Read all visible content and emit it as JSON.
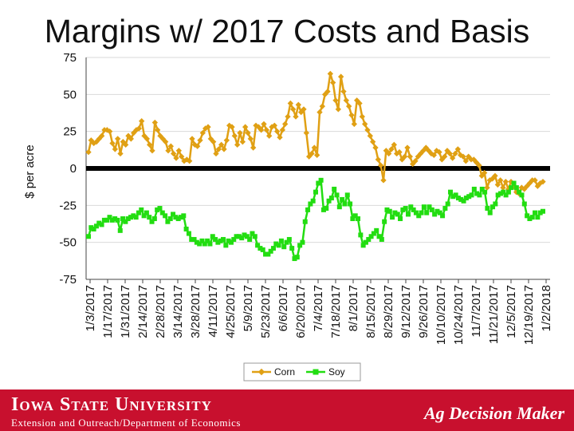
{
  "title": "Margins w/ 2017 Costs and Basis",
  "footer": {
    "university": "Iowa State University",
    "extension": "Extension and Outreach/Department of Economics",
    "brand": "Ag Decision Maker"
  },
  "colors": {
    "corn": "#e0a014",
    "soy": "#22dd11",
    "zero_line": "#000000",
    "footer_bg": "#c8102e"
  },
  "chart_data": {
    "type": "line",
    "ylabel": "$ per acre",
    "xlabel": "",
    "ylim": [
      -75,
      75
    ],
    "yticks": [
      75,
      50,
      25,
      0,
      -25,
      -50,
      -75
    ],
    "xtick_labels": [
      "1/3/2017",
      "1/17/2017",
      "1/31/2017",
      "2/14/2017",
      "2/28/2017",
      "3/14/2017",
      "3/28/2017",
      "4/11/2017",
      "4/25/2017",
      "5/9/2017",
      "5/23/2017",
      "6/6/2017",
      "6/20/2017",
      "7/4/2017",
      "7/18/2017",
      "8/1/2017",
      "8/15/2017",
      "8/29/2017",
      "9/12/2017",
      "9/26/2017",
      "10/10/2017",
      "10/24/2017",
      "11/7/2017",
      "11/21/2017",
      "12/5/2017",
      "12/19/2017",
      "1/2/2018"
    ],
    "reference_line": 0,
    "legend": {
      "position": "bottom"
    },
    "series": [
      {
        "name": "Corn",
        "values": [
          11,
          19,
          17,
          18,
          20,
          22,
          26,
          26,
          25,
          17,
          13,
          20,
          10,
          18,
          16,
          22,
          20,
          24,
          26,
          27,
          32,
          22,
          20,
          16,
          12,
          31,
          26,
          22,
          20,
          18,
          12,
          15,
          10,
          7,
          12,
          8,
          5,
          6,
          5,
          20,
          16,
          15,
          19,
          24,
          27,
          28,
          20,
          18,
          10,
          13,
          16,
          13,
          19,
          29,
          28,
          22,
          16,
          24,
          18,
          28,
          24,
          20,
          14,
          29,
          28,
          26,
          30,
          26,
          22,
          28,
          29,
          25,
          21,
          26,
          30,
          35,
          44,
          40,
          35,
          43,
          38,
          40,
          24,
          8,
          10,
          14,
          9,
          38,
          42,
          50,
          52,
          64,
          58,
          46,
          40,
          62,
          52,
          46,
          42,
          36,
          30,
          46,
          44,
          35,
          30,
          26,
          22,
          18,
          14,
          6,
          2,
          -8,
          12,
          10,
          13,
          16,
          10,
          11,
          6,
          8,
          14,
          8,
          3,
          5,
          8,
          10,
          12,
          14,
          12,
          10,
          9,
          12,
          11,
          6,
          8,
          12,
          10,
          7,
          10,
          13,
          9,
          8,
          5,
          8,
          6,
          6,
          4,
          2,
          -5,
          -3,
          -13,
          -8,
          -7,
          -5,
          -11,
          -8,
          -13,
          -9,
          -14,
          -9,
          -12,
          -16,
          -17,
          -13,
          -14,
          -12,
          -10,
          -8,
          -8,
          -12,
          -10,
          -9
        ]
      },
      {
        "name": "Soy",
        "values": [
          -46,
          -40,
          -41,
          -39,
          -37,
          -38,
          -35,
          -35,
          -33,
          -35,
          -34,
          -35,
          -42,
          -34,
          -36,
          -34,
          -33,
          -32,
          -33,
          -30,
          -28,
          -32,
          -30,
          -33,
          -36,
          -34,
          -28,
          -27,
          -30,
          -32,
          -36,
          -34,
          -31,
          -33,
          -34,
          -33,
          -32,
          -41,
          -44,
          -48,
          -48,
          -50,
          -51,
          -49,
          -51,
          -49,
          -51,
          -46,
          -48,
          -50,
          -49,
          -48,
          -52,
          -49,
          -50,
          -48,
          -46,
          -46,
          -47,
          -45,
          -46,
          -48,
          -44,
          -46,
          -52,
          -54,
          -55,
          -58,
          -58,
          -56,
          -54,
          -51,
          -52,
          -49,
          -53,
          -50,
          -48,
          -54,
          -61,
          -60,
          -52,
          -50,
          -36,
          -28,
          -24,
          -22,
          -16,
          -10,
          -8,
          -28,
          -27,
          -22,
          -20,
          -14,
          -18,
          -26,
          -21,
          -24,
          -18,
          -24,
          -34,
          -32,
          -34,
          -45,
          -52,
          -50,
          -48,
          -46,
          -44,
          -42,
          -46,
          -48,
          -36,
          -28,
          -29,
          -33,
          -30,
          -31,
          -34,
          -28,
          -27,
          -31,
          -26,
          -28,
          -30,
          -32,
          -30,
          -26,
          -30,
          -26,
          -28,
          -31,
          -29,
          -30,
          -32,
          -27,
          -24,
          -16,
          -19,
          -18,
          -20,
          -21,
          -22,
          -20,
          -19,
          -18,
          -14,
          -17,
          -18,
          -14,
          -16,
          -27,
          -30,
          -26,
          -24,
          -18,
          -17,
          -16,
          -18,
          -16,
          -13,
          -10,
          -13,
          -16,
          -18,
          -24,
          -32,
          -34,
          -33,
          -30,
          -33,
          -30,
          -29
        ]
      }
    ]
  }
}
